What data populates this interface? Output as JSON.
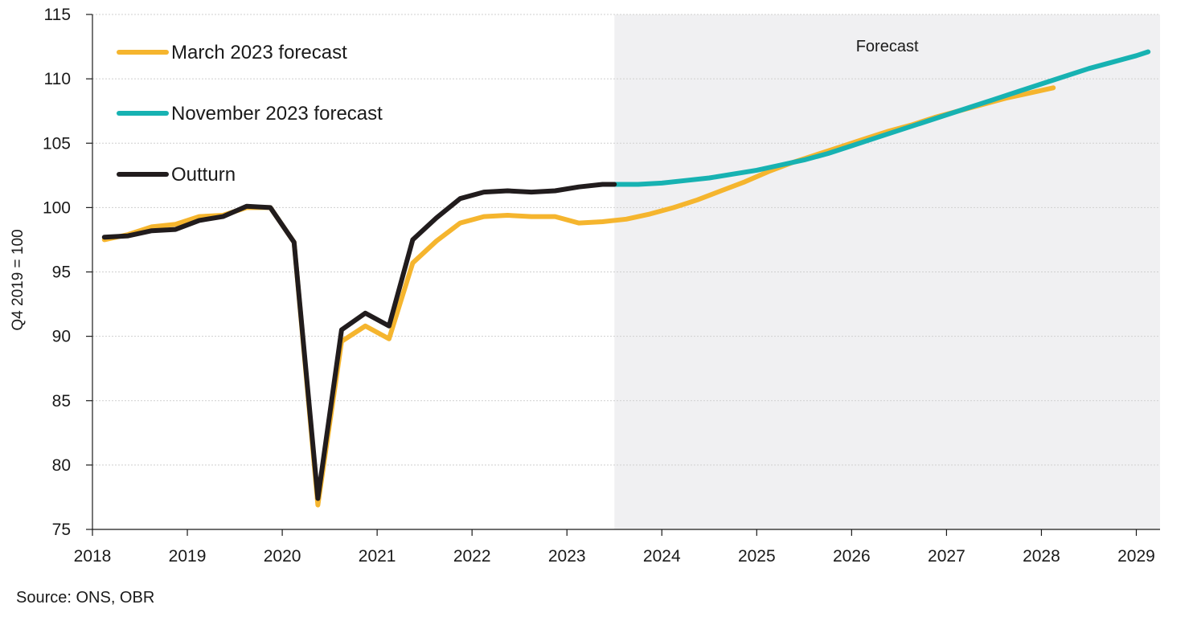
{
  "chart_data": {
    "type": "line",
    "title": "",
    "xlabel": "",
    "ylabel": "Q4 2019 = 100",
    "ylim": [
      75,
      115
    ],
    "y_ticks": [
      75,
      80,
      85,
      90,
      95,
      100,
      105,
      110,
      115
    ],
    "y_tick_labels": [
      "75",
      "80",
      "85",
      "90",
      "95",
      "100",
      "105",
      "110",
      "115"
    ],
    "x_ticks": [
      2018,
      2019,
      2020,
      2021,
      2022,
      2023,
      2024,
      2025,
      2026,
      2027,
      2028,
      2029
    ],
    "x_tick_labels": [
      "2018",
      "2019",
      "2020",
      "2021",
      "2022",
      "2023",
      "2024",
      "2025",
      "2026",
      "2027",
      "2028",
      "2029"
    ],
    "xlim": [
      2018,
      2029.25
    ],
    "grid": true,
    "legend_position": "top-left",
    "forecast_band": {
      "label": "Forecast",
      "start": 2023.5,
      "end": 2029.25,
      "color": "#f0f0f2"
    },
    "series": [
      {
        "name": "March 2023 forecast",
        "color": "#f5b52e",
        "x": [
          2018.125,
          2018.375,
          2018.625,
          2018.875,
          2019.125,
          2019.375,
          2019.625,
          2019.875,
          2020.125,
          2020.375,
          2020.625,
          2020.875,
          2021.125,
          2021.375,
          2021.625,
          2021.875,
          2022.125,
          2022.375,
          2022.625,
          2022.875,
          2023.125,
          2023.375,
          2023.625,
          2023.875,
          2024.125,
          2024.375,
          2024.625,
          2024.875,
          2025.125,
          2025.375,
          2025.625,
          2025.875,
          2026.125,
          2026.375,
          2026.625,
          2026.875,
          2027.125,
          2027.375,
          2027.625,
          2027.875,
          2028.125
        ],
        "values": [
          97.5,
          97.9,
          98.5,
          98.7,
          99.3,
          99.4,
          100.0,
          100.0,
          97.3,
          76.9,
          89.6,
          90.8,
          89.8,
          95.7,
          97.4,
          98.8,
          99.3,
          99.4,
          99.3,
          99.3,
          98.8,
          98.9,
          99.1,
          99.5,
          100.0,
          100.6,
          101.3,
          102.0,
          102.8,
          103.5,
          104.1,
          104.7,
          105.3,
          105.9,
          106.4,
          107.0,
          107.5,
          108.0,
          108.5,
          108.9,
          109.3
        ]
      },
      {
        "name": "November 2023 forecast",
        "color": "#17b2b2",
        "x": [
          2023.5,
          2023.75,
          2024.0,
          2024.25,
          2024.5,
          2024.75,
          2025.0,
          2025.25,
          2025.5,
          2025.75,
          2026.0,
          2026.25,
          2026.5,
          2026.75,
          2027.0,
          2027.25,
          2027.5,
          2027.75,
          2028.0,
          2028.25,
          2028.5,
          2028.75,
          2029.0,
          2029.125
        ],
        "values": [
          101.8,
          101.8,
          101.9,
          102.1,
          102.3,
          102.6,
          102.9,
          103.3,
          103.7,
          104.2,
          104.8,
          105.4,
          106.0,
          106.6,
          107.2,
          107.8,
          108.4,
          109.0,
          109.6,
          110.2,
          110.8,
          111.3,
          111.8,
          112.1
        ]
      },
      {
        "name": "Outturn",
        "color": "#211c1d",
        "x": [
          2018.125,
          2018.375,
          2018.625,
          2018.875,
          2019.125,
          2019.375,
          2019.625,
          2019.875,
          2020.125,
          2020.375,
          2020.625,
          2020.875,
          2021.125,
          2021.375,
          2021.625,
          2021.875,
          2022.125,
          2022.375,
          2022.625,
          2022.875,
          2023.125,
          2023.375,
          2023.5
        ],
        "values": [
          97.7,
          97.8,
          98.2,
          98.3,
          99.0,
          99.3,
          100.1,
          100.0,
          97.3,
          77.4,
          90.5,
          91.8,
          90.8,
          97.5,
          99.2,
          100.7,
          101.2,
          101.3,
          101.2,
          101.3,
          101.6,
          101.8,
          101.8
        ]
      }
    ],
    "source": "Source: ONS, OBR"
  }
}
